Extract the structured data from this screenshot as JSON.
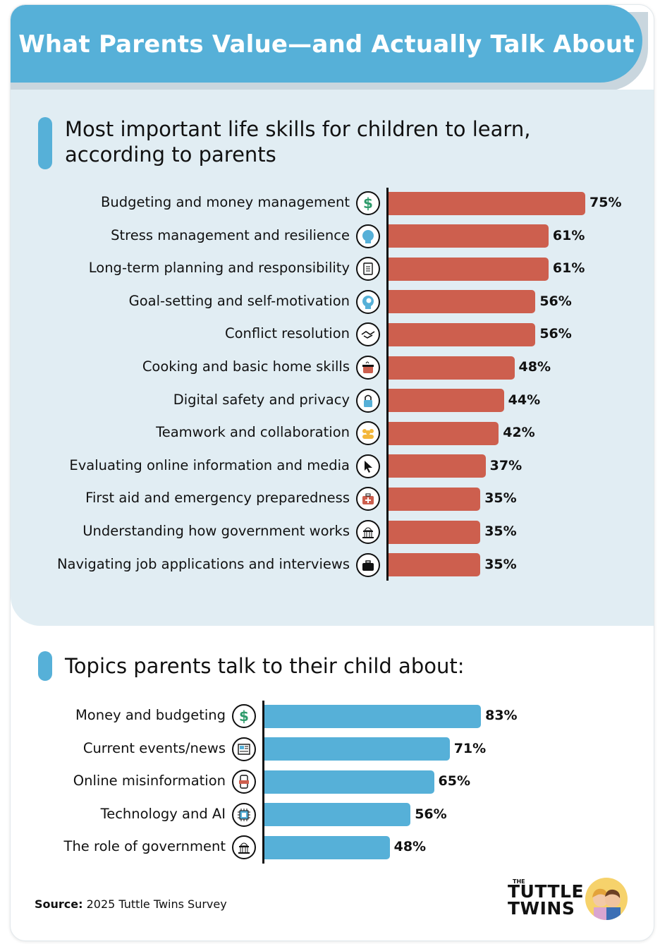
{
  "header": {
    "title": "What Parents Value—and Actually Talk About"
  },
  "section1": {
    "title_line1": "Most important life skills for children to learn,",
    "title_line2": "according to parents"
  },
  "section2": {
    "title": "Topics parents talk to their child about:"
  },
  "colors": {
    "header": "#56b0d8",
    "panel": "#e1edf3",
    "red_bar": "#cd5f4e",
    "blue_bar": "#56b0d8"
  },
  "chart_data": [
    {
      "type": "bar",
      "orientation": "horizontal",
      "title": "Most important life skills for children to learn, according to parents",
      "categories": [
        "Budgeting and money management",
        "Stress management and resilience",
        "Long-term planning and responsibility",
        "Goal-setting and self-motivation",
        "Conflict resolution",
        "Cooking and basic home skills",
        "Digital safety and privacy",
        "Teamwork and collaboration",
        "Evaluating online information and media",
        "First aid and emergency preparedness",
        "Understanding how government works",
        "Navigating job applications and interviews"
      ],
      "values": [
        75,
        61,
        61,
        56,
        56,
        48,
        44,
        42,
        37,
        35,
        35,
        35
      ],
      "labels": [
        "75%",
        "61%",
        "61%",
        "56%",
        "56%",
        "48%",
        "44%",
        "42%",
        "37%",
        "35%",
        "35%",
        "35%"
      ],
      "icons": [
        "dollar-icon",
        "head-icon",
        "clipboard-icon",
        "brain-icon",
        "handshake-icon",
        "pot-icon",
        "lock-icon",
        "team-icon",
        "cursor-icon",
        "first-aid-icon",
        "capitol-icon",
        "briefcase-icon"
      ],
      "color": "#cd5f4e"
    },
    {
      "type": "bar",
      "orientation": "horizontal",
      "title": "Topics parents talk to their child about:",
      "categories": [
        "Money and budgeting",
        "Current events/news",
        "Online misinformation",
        "Technology and AI",
        "The role of government"
      ],
      "values": [
        83,
        71,
        65,
        56,
        48
      ],
      "labels": [
        "83%",
        "71%",
        "65%",
        "56%",
        "48%"
      ],
      "icons": [
        "dollar-icon",
        "newspaper-icon",
        "fake-phone-icon",
        "chip-icon",
        "capitol-icon"
      ],
      "color": "#56b0d8"
    }
  ],
  "source": {
    "label": "Source:",
    "text": " 2025 Tuttle Twins Survey"
  },
  "logo": {
    "small": "THE",
    "line1": "TUTTLE",
    "line2": "TWINS"
  }
}
